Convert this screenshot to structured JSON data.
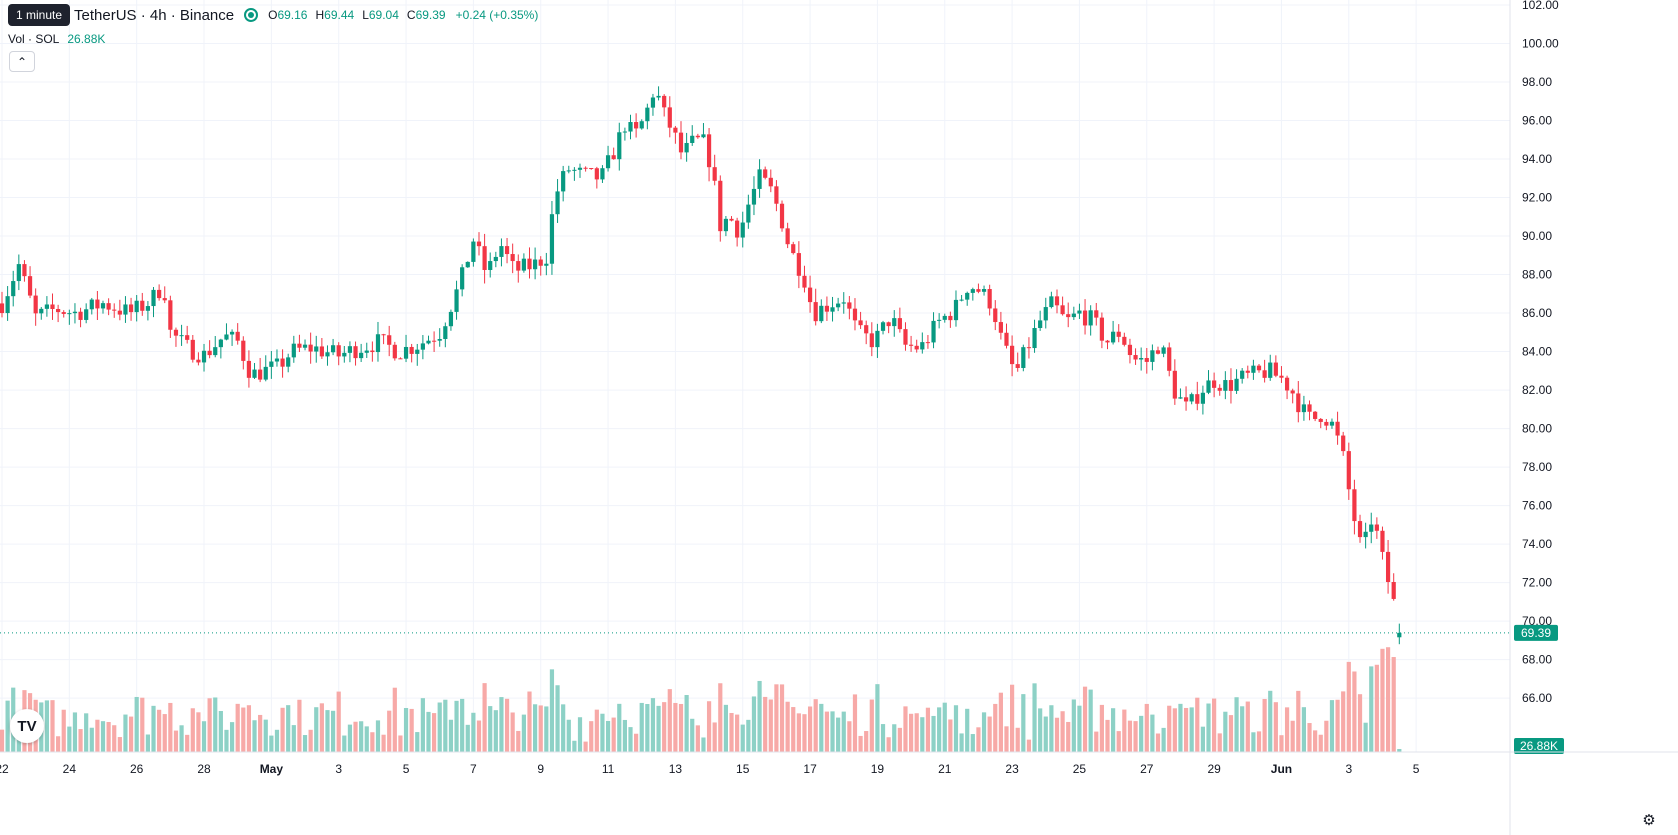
{
  "header": {
    "interval_badge": "1 minute",
    "symbol": "TetherUS · 4h · Binance",
    "ohlc": {
      "o_label": "O",
      "o": "69.16",
      "h_label": "H",
      "h": "69.44",
      "l_label": "L",
      "l": "69.04",
      "c_label": "C",
      "c": "69.39"
    },
    "change": "+0.24 (+0.35%)",
    "vol_label": "Vol · SOL",
    "vol_value": "26.88K",
    "collapse_icon": "chevron-up-icon"
  },
  "logo_text": "TV",
  "colors": {
    "up": "#089981",
    "down": "#f23645",
    "up_vol": "#8dd1c6",
    "down_vol": "#f7a9a7"
  },
  "chart_data": {
    "type": "candlestick",
    "ylim": [
      64.5,
      102
    ],
    "y_ticks": [
      "102.00",
      "100.00",
      "98.00",
      "96.00",
      "94.00",
      "92.00",
      "90.00",
      "88.00",
      "86.00",
      "84.00",
      "82.00",
      "80.00",
      "78.00",
      "76.00",
      "74.00",
      "72.00",
      "70.00",
      "68.00",
      "66.00"
    ],
    "x_ticks": [
      {
        "label": "22",
        "day": 22
      },
      {
        "label": "24",
        "day": 24
      },
      {
        "label": "26",
        "day": 26
      },
      {
        "label": "28",
        "day": 28
      },
      {
        "label": "May",
        "day": 30
      },
      {
        "label": "3",
        "day": 32
      },
      {
        "label": "5",
        "day": 34
      },
      {
        "label": "7",
        "day": 36
      },
      {
        "label": "9",
        "day": 38
      },
      {
        "label": "11",
        "day": 40
      },
      {
        "label": "13",
        "day": 42
      },
      {
        "label": "15",
        "day": 44
      },
      {
        "label": "17",
        "day": 46
      },
      {
        "label": "19",
        "day": 48
      },
      {
        "label": "21",
        "day": 50
      },
      {
        "label": "23",
        "day": 52
      },
      {
        "label": "25",
        "day": 54
      },
      {
        "label": "27",
        "day": 56
      },
      {
        "label": "29",
        "day": 58
      },
      {
        "label": "Jun",
        "day": 60
      },
      {
        "label": "3",
        "day": 62
      },
      {
        "label": "5",
        "day": 64
      }
    ],
    "last_price": "69.39",
    "last_volume": "26.88K",
    "close_path": [
      [
        22.0,
        86.5
      ],
      [
        22.5,
        88.5
      ],
      [
        23.0,
        85.8
      ],
      [
        23.6,
        86.2
      ],
      [
        24.2,
        86.0
      ],
      [
        25.0,
        86.5
      ],
      [
        25.8,
        86.0
      ],
      [
        26.4,
        86.6
      ],
      [
        26.8,
        87.5
      ],
      [
        27.0,
        85.0
      ],
      [
        27.5,
        84.2
      ],
      [
        28.0,
        83.8
      ],
      [
        28.6,
        84.8
      ],
      [
        29.0,
        84.5
      ],
      [
        29.4,
        82.8
      ],
      [
        29.8,
        83.0
      ],
      [
        30.2,
        83.2
      ],
      [
        30.6,
        84.0
      ],
      [
        31.2,
        84.2
      ],
      [
        32.0,
        83.8
      ],
      [
        32.6,
        84.2
      ],
      [
        33.2,
        84.5
      ],
      [
        33.8,
        84.0
      ],
      [
        34.4,
        84.4
      ],
      [
        35.0,
        85.0
      ],
      [
        35.6,
        87.5
      ],
      [
        36.0,
        89.8
      ],
      [
        36.4,
        88.0
      ],
      [
        36.8,
        89.6
      ],
      [
        37.2,
        88.2
      ],
      [
        37.8,
        88.5
      ],
      [
        38.2,
        89.0
      ],
      [
        38.4,
        92.0
      ],
      [
        38.8,
        93.5
      ],
      [
        39.2,
        93.2
      ],
      [
        39.8,
        93.0
      ],
      [
        40.2,
        94.5
      ],
      [
        40.5,
        95.8
      ],
      [
        40.8,
        95.2
      ],
      [
        41.1,
        96.2
      ],
      [
        41.4,
        97.8
      ],
      [
        41.6,
        96.5
      ],
      [
        41.9,
        95.5
      ],
      [
        42.2,
        94.2
      ],
      [
        42.5,
        94.8
      ],
      [
        42.8,
        95.0
      ],
      [
        43.1,
        93.5
      ],
      [
        43.3,
        90.5
      ],
      [
        43.6,
        91.0
      ],
      [
        43.9,
        90.2
      ],
      [
        44.2,
        91.8
      ],
      [
        44.5,
        93.0
      ],
      [
        44.8,
        92.5
      ],
      [
        45.1,
        91.2
      ],
      [
        45.4,
        89.3
      ],
      [
        45.8,
        88.0
      ],
      [
        46.1,
        86.0
      ],
      [
        46.6,
        86.5
      ],
      [
        47.0,
        86.8
      ],
      [
        47.4,
        85.0
      ],
      [
        47.9,
        84.5
      ],
      [
        48.4,
        85.8
      ],
      [
        48.8,
        84.3
      ],
      [
        49.3,
        84.2
      ],
      [
        49.8,
        85.5
      ],
      [
        50.3,
        86.2
      ],
      [
        50.7,
        87.5
      ],
      [
        51.0,
        87.2
      ],
      [
        51.4,
        86.5
      ],
      [
        51.7,
        84.5
      ],
      [
        52.1,
        82.8
      ],
      [
        52.4,
        84.0
      ],
      [
        52.8,
        85.5
      ],
      [
        53.2,
        86.5
      ],
      [
        53.6,
        85.5
      ],
      [
        54.0,
        86.0
      ],
      [
        54.4,
        85.6
      ],
      [
        54.8,
        84.5
      ],
      [
        55.2,
        85.0
      ],
      [
        55.6,
        83.6
      ],
      [
        56.0,
        83.5
      ],
      [
        56.4,
        84.5
      ],
      [
        56.8,
        82.0
      ],
      [
        57.2,
        81.0
      ],
      [
        57.6,
        82.0
      ],
      [
        58.0,
        82.5
      ],
      [
        58.4,
        82.2
      ],
      [
        58.8,
        82.6
      ],
      [
        59.2,
        82.8
      ],
      [
        59.6,
        83.0
      ],
      [
        60.0,
        82.6
      ],
      [
        60.3,
        82.0
      ],
      [
        60.6,
        81.0
      ],
      [
        60.9,
        80.4
      ],
      [
        61.2,
        80.8
      ],
      [
        61.5,
        80.2
      ],
      [
        61.8,
        78.8
      ],
      [
        62.1,
        75.8
      ],
      [
        62.4,
        73.5
      ],
      [
        62.7,
        75.5
      ],
      [
        63.0,
        73.2
      ],
      [
        63.3,
        71.2
      ],
      [
        63.55,
        69.39
      ]
    ]
  }
}
